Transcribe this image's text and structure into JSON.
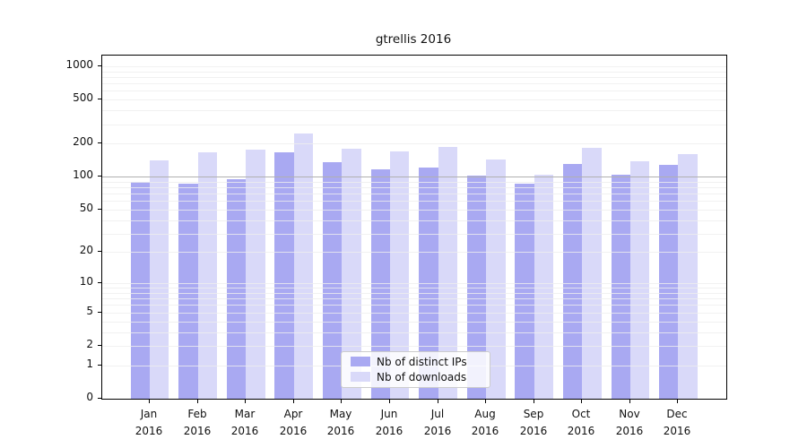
{
  "chart_data": {
    "type": "bar",
    "title": "gtrellis 2016",
    "categories": [
      "Jan 2016",
      "Feb 2016",
      "Mar 2016",
      "Apr 2016",
      "May 2016",
      "Jun 2016",
      "Jul 2016",
      "Aug 2016",
      "Sep 2016",
      "Oct 2016",
      "Nov 2016",
      "Dec 2016"
    ],
    "series": [
      {
        "name": "Nb of distinct IPs",
        "color": "#a9a9f2",
        "values": [
          90,
          86,
          95,
          165,
          135,
          117,
          122,
          102,
          87,
          130,
          104,
          129
        ]
      },
      {
        "name": "Nb of downloads",
        "color": "#d9d9f9",
        "values": [
          140,
          165,
          177,
          245,
          180,
          170,
          185,
          142,
          105,
          182,
          137,
          161
        ]
      }
    ],
    "xlabel": "",
    "ylabel": "",
    "y_axis": {
      "scale": "log1p",
      "tick_values": [
        0,
        1,
        2,
        5,
        10,
        20,
        50,
        100,
        200,
        500,
        1000
      ],
      "ylim": [
        0,
        1250
      ],
      "emphasized_gridline_value": 100
    },
    "grid": "horizontal minor gridlines at 1-9, 10-90, 100-900, 1000",
    "legend": {
      "position": "inside-bottom-center",
      "entries": [
        "Nb of distinct IPs",
        "Nb of downloads"
      ]
    },
    "style_colors": {
      "grid_minor": "#ededed",
      "grid_emphasis": "#b0b0b0",
      "axis_frame": "#000000",
      "legend_border": "#cccccc",
      "text": "#111111"
    }
  }
}
